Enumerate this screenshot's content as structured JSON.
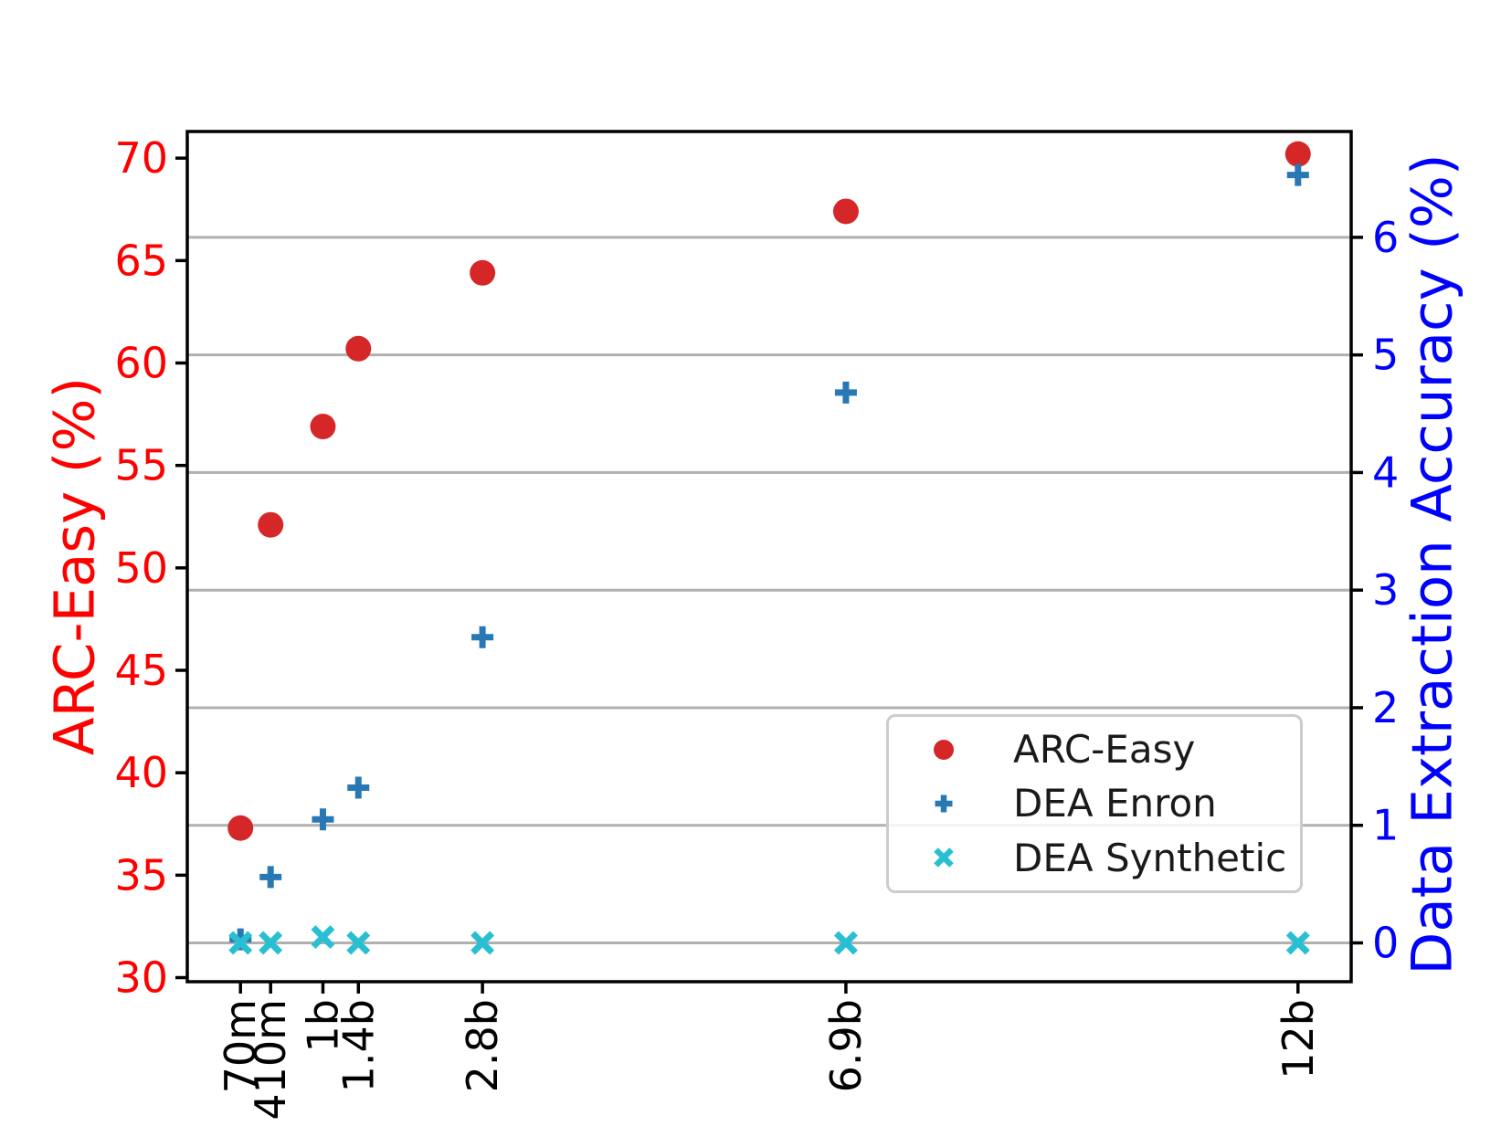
{
  "chart_data": {
    "type": "scatter",
    "title": "",
    "x_categories": [
      "70m",
      "410m",
      "1b",
      "1.4b",
      "2.8b",
      "6.9b",
      "12b"
    ],
    "x_values_billions": [
      0.07,
      0.41,
      1.0,
      1.4,
      2.8,
      6.9,
      12.0
    ],
    "x_axis": {
      "range_billions": [
        -0.53,
        12.6
      ],
      "tick_label_rotation_deg": 90,
      "tick_label_color": "#000000"
    },
    "left_axis": {
      "label": "ARC-Easy (%)",
      "color": "#ff0000",
      "ticks": [
        70,
        65,
        60,
        55,
        50,
        45,
        40,
        35,
        30
      ],
      "range": [
        29.8,
        71.3
      ]
    },
    "right_axis": {
      "label": "Data Extraction Accuracy (%)",
      "color": "#0000ff",
      "ticks": [
        6,
        5,
        4,
        3,
        2,
        1,
        0
      ],
      "range": [
        -0.33,
        6.9
      ]
    },
    "grid": {
      "on": true,
      "aligned_to": "right_axis",
      "color": "#b0b0b0"
    },
    "series": [
      {
        "name": "ARC-Easy",
        "axis": "left",
        "marker": "circle",
        "color": "#d62728",
        "values": [
          37.3,
          52.1,
          56.9,
          60.7,
          64.4,
          67.4,
          70.2
        ]
      },
      {
        "name": "DEA Enron",
        "axis": "right",
        "marker": "plus",
        "color": "#2878b5",
        "values": [
          0.03,
          0.56,
          1.05,
          1.32,
          2.6,
          4.68,
          6.53
        ]
      },
      {
        "name": "DEA Synthetic",
        "axis": "right",
        "marker": "x",
        "color": "#29bfd3",
        "values": [
          0.0,
          0.0,
          0.05,
          0.0,
          0.0,
          0.0,
          0.0
        ]
      }
    ],
    "legend": {
      "location": "center right inside plot"
    }
  }
}
